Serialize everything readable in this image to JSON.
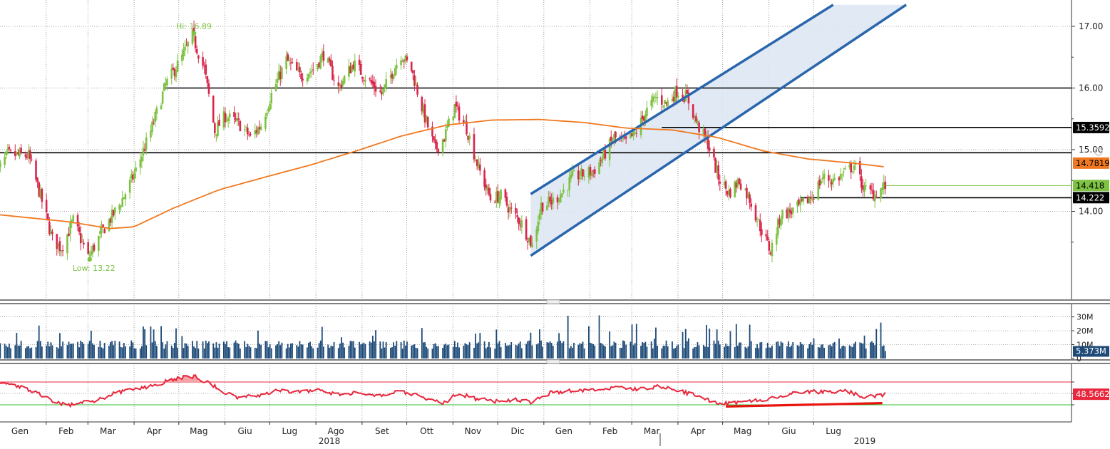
{
  "chart_data": [
    {
      "type": "candlestick",
      "panel": "price",
      "y_ticks": [
        "17.00",
        "16.00",
        "15.00",
        "14.00"
      ],
      "ylim": [
        13.1,
        17.35
      ],
      "x_months": [
        "Gen",
        "Feb",
        "Mar",
        "Apr",
        "Mag",
        "Giu",
        "Lug",
        "Ago",
        "Set",
        "Ott",
        "Nov",
        "Dic",
        "Gen",
        "Feb",
        "Mar",
        "Apr",
        "Mag",
        "Giu",
        "Lug"
      ],
      "x_years": [
        "2018",
        "2019"
      ],
      "annotations": {
        "high": "Hi: 16.89",
        "low": "Low: 13.22",
        "high_value": 16.89,
        "low_value": 13.22
      },
      "price_path": [
        [
          "2018-01-02",
          14.6
        ],
        [
          "2018-01-10",
          14.92
        ],
        [
          "2018-01-24",
          14.9
        ],
        [
          "2018-02-01",
          14.25
        ],
        [
          "2018-02-09",
          13.55
        ],
        [
          "2018-02-15",
          13.4
        ],
        [
          "2018-02-23",
          13.85
        ],
        [
          "2018-03-05",
          13.25
        ],
        [
          "2018-03-15",
          13.7
        ],
        [
          "2018-03-26",
          14.1
        ],
        [
          "2018-04-05",
          14.6
        ],
        [
          "2018-04-16",
          15.3
        ],
        [
          "2018-04-26",
          16.05
        ],
        [
          "2018-05-07",
          16.5
        ],
        [
          "2018-05-14",
          16.85
        ],
        [
          "2018-05-22",
          16.3
        ],
        [
          "2018-05-29",
          15.3
        ],
        [
          "2018-06-05",
          15.55
        ],
        [
          "2018-06-15",
          15.4
        ],
        [
          "2018-06-22",
          15.2
        ],
        [
          "2018-06-29",
          15.4
        ],
        [
          "2018-07-06",
          15.9
        ],
        [
          "2018-07-16",
          16.45
        ],
        [
          "2018-07-25",
          16.2
        ],
        [
          "2018-08-03",
          16.3
        ],
        [
          "2018-08-10",
          16.55
        ],
        [
          "2018-08-20",
          16.0
        ],
        [
          "2018-08-30",
          16.4
        ],
        [
          "2018-09-10",
          16.1
        ],
        [
          "2018-09-18",
          15.9
        ],
        [
          "2018-09-25",
          16.25
        ],
        [
          "2018-10-01",
          16.55
        ],
        [
          "2018-10-08",
          16.3
        ],
        [
          "2018-10-16",
          15.6
        ],
        [
          "2018-10-24",
          15.0
        ],
        [
          "2018-10-30",
          15.2
        ],
        [
          "2018-11-06",
          15.7
        ],
        [
          "2018-11-14",
          15.35
        ],
        [
          "2018-11-22",
          14.7
        ],
        [
          "2018-11-30",
          14.2
        ],
        [
          "2018-12-07",
          14.25
        ],
        [
          "2018-12-14",
          14.0
        ],
        [
          "2018-12-21",
          13.8
        ],
        [
          "2018-12-28",
          13.45
        ],
        [
          "2019-01-03",
          14.1
        ],
        [
          "2019-01-10",
          14.15
        ],
        [
          "2019-01-17",
          14.3
        ],
        [
          "2019-01-24",
          14.55
        ],
        [
          "2019-01-31",
          14.6
        ],
        [
          "2019-02-07",
          14.65
        ],
        [
          "2019-02-14",
          14.9
        ],
        [
          "2019-02-21",
          15.2
        ],
        [
          "2019-02-28",
          15.1
        ],
        [
          "2019-03-07",
          15.25
        ],
        [
          "2019-03-14",
          15.6
        ],
        [
          "2019-03-21",
          15.85
        ],
        [
          "2019-03-28",
          15.75
        ],
        [
          "2019-04-04",
          15.95
        ],
        [
          "2019-04-11",
          15.85
        ],
        [
          "2019-04-18",
          15.4
        ],
        [
          "2019-04-25",
          15.1
        ],
        [
          "2019-05-02",
          14.55
        ],
        [
          "2019-05-09",
          14.3
        ],
        [
          "2019-05-16",
          14.5
        ],
        [
          "2019-05-23",
          14.2
        ],
        [
          "2019-05-30",
          13.75
        ],
        [
          "2019-06-06",
          13.35
        ],
        [
          "2019-06-13",
          13.95
        ],
        [
          "2019-06-20",
          14.0
        ],
        [
          "2019-06-27",
          14.1
        ],
        [
          "2019-07-04",
          14.25
        ],
        [
          "2019-07-11",
          14.55
        ],
        [
          "2019-07-18",
          14.5
        ],
        [
          "2019-07-25",
          14.6
        ],
        [
          "2019-08-01",
          14.75
        ],
        [
          "2019-08-08",
          14.35
        ],
        [
          "2019-08-15",
          14.28
        ],
        [
          "2019-08-22",
          14.42
        ]
      ],
      "moving_average": [
        [
          "2018-01-02",
          13.95
        ],
        [
          "2018-02-20",
          13.83
        ],
        [
          "2018-03-20",
          13.72
        ],
        [
          "2018-04-05",
          13.75
        ],
        [
          "2018-05-01",
          14.05
        ],
        [
          "2018-06-01",
          14.35
        ],
        [
          "2018-07-01",
          14.55
        ],
        [
          "2018-08-01",
          14.75
        ],
        [
          "2018-09-01",
          14.98
        ],
        [
          "2018-10-01",
          15.22
        ],
        [
          "2018-11-01",
          15.4
        ],
        [
          "2018-12-01",
          15.48
        ],
        [
          "2019-01-02",
          15.49
        ],
        [
          "2019-02-01",
          15.44
        ],
        [
          "2019-03-01",
          15.35
        ],
        [
          "2019-04-01",
          15.32
        ],
        [
          "2019-05-01",
          15.2
        ],
        [
          "2019-06-01",
          14.98
        ],
        [
          "2019-07-01",
          14.85
        ],
        [
          "2019-08-01",
          14.78
        ],
        [
          "2019-08-22",
          14.72
        ]
      ],
      "horizontal_levels": [
        16.0,
        14.95,
        15.36,
        14.22
      ],
      "channel": {
        "lower": [
          [
            "2018-12-27",
            13.28
          ],
          [
            "2019-09-05",
            17.35
          ]
        ],
        "upper": [
          [
            "2018-12-27",
            14.28
          ],
          [
            "2019-07-18",
            17.35
          ]
        ]
      },
      "price_labels": [
        {
          "text": "15.3592",
          "value": 15.3592,
          "color": "#000000",
          "text_color": "#ffffff"
        },
        {
          "text": "14.7819",
          "value": 14.7819,
          "color": "#f07820",
          "text_color": "#000000"
        },
        {
          "text": "14.418",
          "value": 14.418,
          "color": "#7dc242",
          "text_color": "#000000"
        },
        {
          "text": "14.222",
          "value": 14.222,
          "color": "#000000",
          "text_color": "#ffffff"
        }
      ],
      "colors": {
        "up": "#7dc242",
        "down": "#d8254a",
        "moving_average": "#f07820",
        "channel_line": "#2a66ad",
        "channel_fill": "#dde7f3",
        "level_line": "#000000"
      }
    },
    {
      "type": "bar",
      "panel": "volume",
      "y_ticks": [
        "30M",
        "20M",
        "10M",
        "0"
      ],
      "ylim": [
        0,
        37000000
      ],
      "last_value_label": "5.373M",
      "color": "#1d4a78"
    },
    {
      "type": "line",
      "panel": "rsi",
      "ylim": [
        0,
        100
      ],
      "upper_band": 70,
      "lower_band": 30,
      "last_value_label": "48.5662",
      "rsi_path": [
        [
          "2018-01-02",
          68
        ],
        [
          "2018-01-15",
          65
        ],
        [
          "2018-01-26",
          55
        ],
        [
          "2018-02-05",
          42
        ],
        [
          "2018-02-12",
          33
        ],
        [
          "2018-02-20",
          30
        ],
        [
          "2018-03-01",
          35
        ],
        [
          "2018-03-08",
          34
        ],
        [
          "2018-03-20",
          48
        ],
        [
          "2018-04-05",
          58
        ],
        [
          "2018-04-20",
          65
        ],
        [
          "2018-05-02",
          76
        ],
        [
          "2018-05-15",
          80
        ],
        [
          "2018-05-25",
          68
        ],
        [
          "2018-06-05",
          52
        ],
        [
          "2018-06-15",
          42
        ],
        [
          "2018-06-28",
          47
        ],
        [
          "2018-07-10",
          56
        ],
        [
          "2018-07-25",
          52
        ],
        [
          "2018-08-06",
          55
        ],
        [
          "2018-08-20",
          48
        ],
        [
          "2018-09-03",
          52
        ],
        [
          "2018-09-17",
          45
        ],
        [
          "2018-10-01",
          54
        ],
        [
          "2018-10-15",
          44
        ],
        [
          "2018-10-30",
          33
        ],
        [
          "2018-11-08",
          50
        ],
        [
          "2018-11-20",
          41
        ],
        [
          "2018-12-03",
          36
        ],
        [
          "2018-12-17",
          39
        ],
        [
          "2018-12-28",
          35
        ],
        [
          "2019-01-10",
          52
        ],
        [
          "2019-01-25",
          55
        ],
        [
          "2019-02-08",
          57
        ],
        [
          "2019-02-22",
          60
        ],
        [
          "2019-03-08",
          58
        ],
        [
          "2019-03-22",
          62
        ],
        [
          "2019-04-05",
          56
        ],
        [
          "2019-04-19",
          44
        ],
        [
          "2019-05-03",
          32
        ],
        [
          "2019-05-17",
          35
        ],
        [
          "2019-05-31",
          38
        ],
        [
          "2019-06-14",
          45
        ],
        [
          "2019-06-28",
          54
        ],
        [
          "2019-07-12",
          52
        ],
        [
          "2019-07-26",
          55
        ],
        [
          "2019-08-09",
          43
        ],
        [
          "2019-08-22",
          48.57
        ]
      ],
      "trendline": [
        [
          "2019-05-07",
          27
        ],
        [
          "2019-08-20",
          33
        ]
      ],
      "colors": {
        "line": "#e8273d",
        "upper_band": "#e8273d",
        "lower_band": "#2fbf2f",
        "trendline": "#e8140f"
      }
    }
  ]
}
